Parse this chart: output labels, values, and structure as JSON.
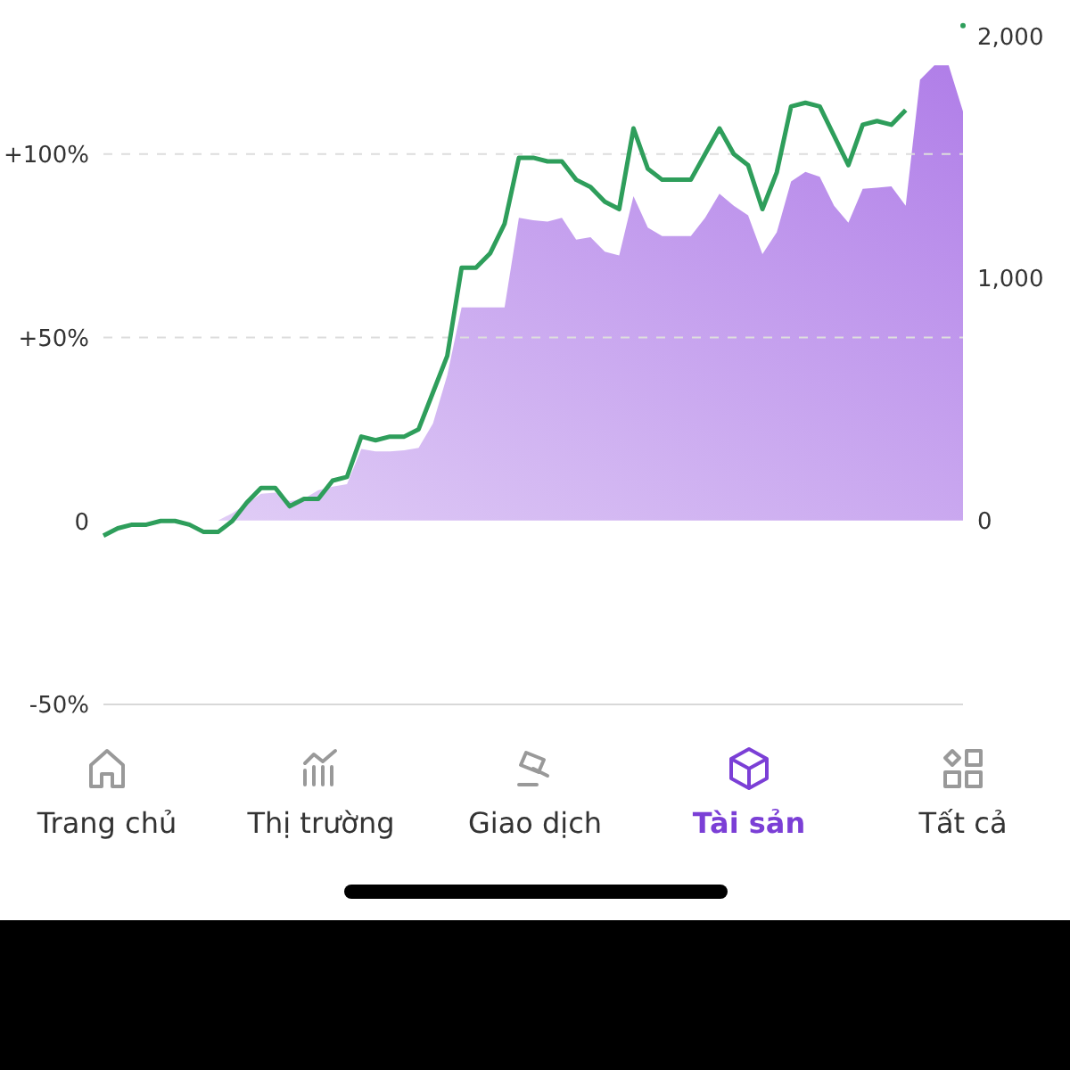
{
  "chart_data": {
    "type": "line",
    "categories": [
      null,
      null,
      null,
      null,
      null,
      null,
      null,
      null,
      null,
      null,
      null,
      null,
      null,
      null,
      null,
      null,
      null,
      null,
      null,
      null,
      null,
      null,
      null,
      null,
      null,
      null,
      null,
      null,
      null,
      null,
      null,
      null,
      null,
      null,
      null,
      null,
      null,
      null,
      null,
      null,
      null,
      null,
      null,
      null,
      null,
      null,
      null,
      null,
      null,
      null,
      null,
      null,
      null,
      null,
      null,
      null,
      null,
      null,
      null,
      null,
      null
    ],
    "series": [
      {
        "type": "area",
        "axis": "y2",
        "color": "#b07ee8",
        "values": [
          0,
          0,
          0,
          0,
          0,
          0,
          0,
          0,
          0,
          30,
          70,
          110,
          115,
          80,
          90,
          125,
          140,
          150,
          295,
          285,
          285,
          290,
          300,
          400,
          600,
          880,
          880,
          880,
          880,
          1250,
          1240,
          1235,
          1250,
          1160,
          1170,
          1110,
          1095,
          1340,
          1210,
          1175,
          1175,
          1175,
          1250,
          1350,
          1300,
          1260,
          1100,
          1190,
          1400,
          1440,
          1420,
          1300,
          1230,
          1370,
          1375,
          1380,
          1300,
          1820,
          1880,
          1880,
          1690
        ]
      },
      {
        "color": "#2e9e5b",
        "values": [
          -4,
          -2,
          -1,
          -1,
          0,
          0,
          -1,
          -3,
          -3,
          0,
          5,
          9,
          9,
          4,
          6,
          6,
          11,
          12,
          23,
          22,
          23,
          23,
          25,
          35,
          45,
          69,
          69,
          73,
          81,
          99,
          99,
          98,
          98,
          93,
          91,
          87,
          85,
          107,
          96,
          93,
          93,
          93,
          100,
          107,
          100,
          97,
          85,
          95,
          113,
          114,
          113,
          105,
          97,
          108,
          109,
          108,
          112,
          null,
          null,
          null,
          135
        ]
      }
    ],
    "ylim": [
      -50,
      142
    ],
    "yticks": [
      {
        "value": -50,
        "label": "-50%"
      },
      {
        "value": 0,
        "label": "0"
      },
      {
        "value": 50,
        "label": "+50%"
      },
      {
        "value": 100,
        "label": "+100%"
      }
    ],
    "y2lim": [
      -760,
      2150
    ],
    "y2ticks": [
      0,
      {
        "value": 1000,
        "label": "1,000"
      },
      {
        "value": 2000,
        "label": "2,000"
      }
    ],
    "grid": "y",
    "marker": "none",
    "line_style": "solid",
    "annotations": [
      "Trang chủ",
      "Thị trường",
      "Giao dịch",
      "Tài sản",
      "Tất cả"
    ]
  }
}
